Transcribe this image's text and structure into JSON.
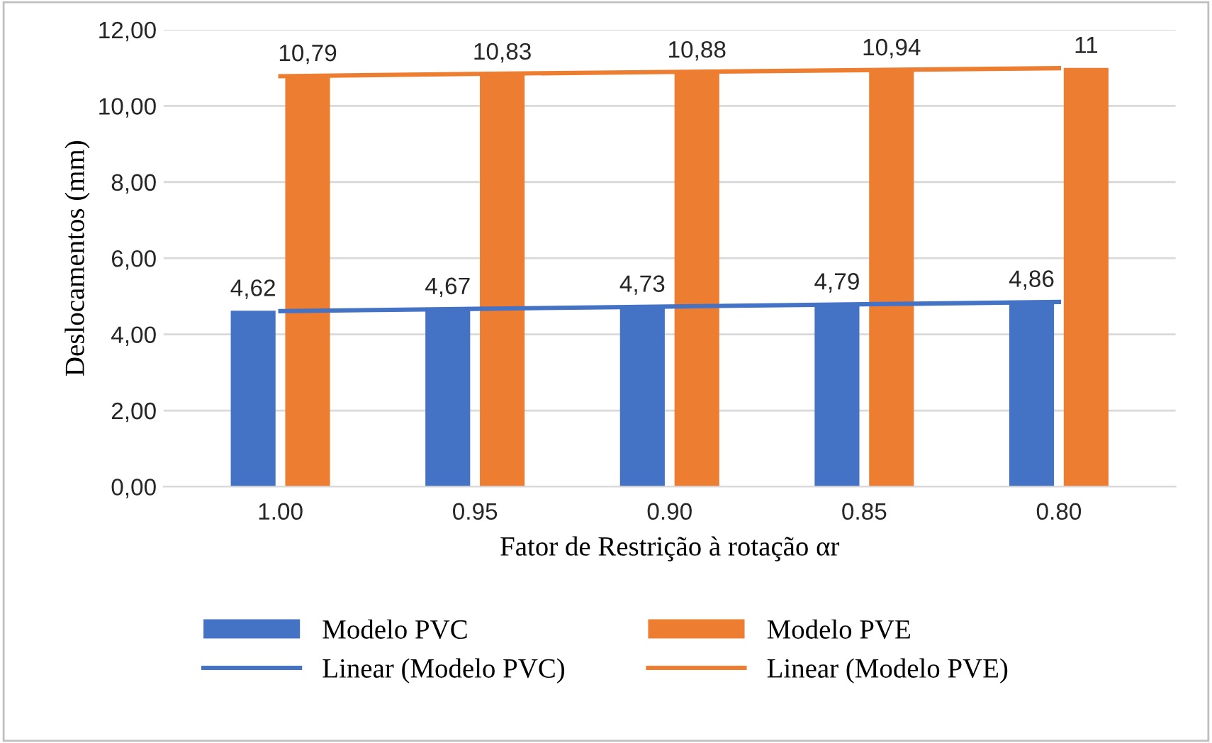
{
  "chart_data": {
    "type": "bar",
    "xlabel": "Fator de Restrição à rotação αr",
    "ylabel": "Deslocamentos (mm)",
    "categories": [
      "1.00",
      "0.95",
      "0.90",
      "0.85",
      "0.80"
    ],
    "series": [
      {
        "name": "Modelo PVC",
        "color": "#4472c4",
        "values": [
          4.62,
          4.67,
          4.73,
          4.79,
          4.86
        ],
        "value_labels": [
          "4,62",
          "4,67",
          "4,73",
          "4,79",
          "4,86"
        ]
      },
      {
        "name": "Modelo PVE",
        "color": "#ed7d31",
        "values": [
          10.79,
          10.83,
          10.88,
          10.94,
          11
        ],
        "value_labels": [
          "10,79",
          "10,83",
          "10,88",
          "10,94",
          "11"
        ]
      },
      {
        "name": "Linear (Modelo PVC)",
        "type": "line",
        "color": "#4472c4",
        "values": [
          4.61,
          4.67,
          4.73,
          4.79,
          4.85
        ]
      },
      {
        "name": "Linear (Modelo PVE)",
        "type": "line",
        "color": "#ed7d31",
        "values": [
          10.78,
          10.84,
          10.89,
          10.94,
          10.99
        ]
      }
    ],
    "ylim": [
      0,
      12
    ],
    "yticks": [
      {
        "value": 0,
        "label": "0,00"
      },
      {
        "value": 2,
        "label": "2,00"
      },
      {
        "value": 4,
        "label": "4,00"
      },
      {
        "value": 6,
        "label": "6,00"
      },
      {
        "value": 8,
        "label": "8,00"
      },
      {
        "value": 10,
        "label": "10,00"
      },
      {
        "value": 12,
        "label": "12,00"
      }
    ],
    "grid": "y",
    "legend": "bottom",
    "marker": "none",
    "line_style": "solid"
  }
}
